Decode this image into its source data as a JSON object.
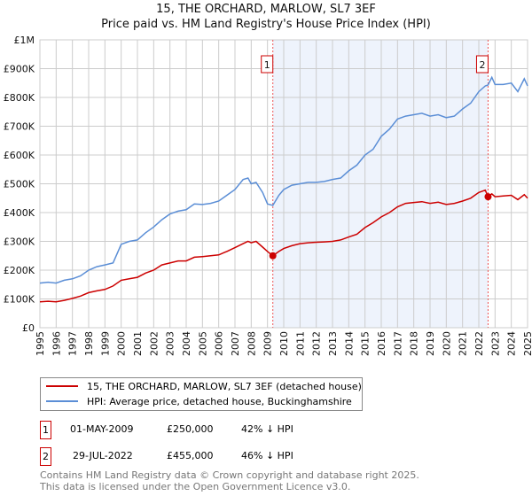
{
  "chart_data": {
    "type": "line",
    "title": "15, THE ORCHARD, MARLOW, SL7 3EF",
    "subtitle": "Price paid vs. HM Land Registry's House Price Index (HPI)",
    "xlim": [
      1995,
      2025
    ],
    "ylim": [
      0,
      1000000
    ],
    "x_ticks": [
      "1995",
      "1996",
      "1997",
      "1998",
      "1999",
      "2000",
      "2001",
      "2002",
      "2003",
      "2004",
      "2005",
      "2006",
      "2007",
      "2008",
      "2009",
      "2010",
      "2011",
      "2012",
      "2013",
      "2014",
      "2015",
      "2016",
      "2017",
      "2018",
      "2019",
      "2020",
      "2021",
      "2022",
      "2023",
      "2024",
      "2025"
    ],
    "y_ticks": [
      {
        "v": 0,
        "label": "£0"
      },
      {
        "v": 100000,
        "label": "£100K"
      },
      {
        "v": 200000,
        "label": "£200K"
      },
      {
        "v": 300000,
        "label": "£300K"
      },
      {
        "v": 400000,
        "label": "£400K"
      },
      {
        "v": 500000,
        "label": "£500K"
      },
      {
        "v": 600000,
        "label": "£600K"
      },
      {
        "v": 700000,
        "label": "£700K"
      },
      {
        "v": 800000,
        "label": "£800K"
      },
      {
        "v": 900000,
        "label": "£900K"
      },
      {
        "v": 1000000,
        "label": "£1M"
      }
    ],
    "grid": true,
    "series": [
      {
        "name": "15, THE ORCHARD, MARLOW, SL7 3EF (detached house)",
        "color": "#cc0000",
        "x": [
          1995,
          1995.5,
          1996,
          1996.5,
          1997,
          1997.5,
          1998,
          1998.5,
          1999,
          1999.5,
          2000,
          2000.5,
          2001,
          2001.5,
          2002,
          2002.5,
          2003,
          2003.5,
          2004,
          2004.5,
          2005,
          2005.5,
          2006,
          2006.5,
          2007,
          2007.5,
          2007.8,
          2008,
          2008.3,
          2008.7,
          2009,
          2009.33,
          2009.7,
          2010,
          2010.5,
          2011,
          2011.5,
          2012,
          2012.5,
          2013,
          2013.5,
          2014,
          2014.5,
          2015,
          2015.5,
          2016,
          2016.5,
          2017,
          2017.5,
          2018,
          2018.5,
          2019,
          2019.5,
          2020,
          2020.5,
          2021,
          2021.5,
          2022,
          2022.4,
          2022.57,
          2022.8,
          2023,
          2023.5,
          2024,
          2024.4,
          2024.8,
          2025
        ],
        "y": [
          90000,
          92000,
          90000,
          95000,
          102000,
          110000,
          122000,
          128000,
          133000,
          145000,
          165000,
          170000,
          175000,
          190000,
          200000,
          218000,
          225000,
          232000,
          232000,
          245000,
          247000,
          250000,
          253000,
          265000,
          278000,
          292000,
          300000,
          295000,
          300000,
          280000,
          265000,
          250000,
          265000,
          275000,
          285000,
          292000,
          295000,
          297000,
          298000,
          300000,
          305000,
          315000,
          325000,
          348000,
          365000,
          385000,
          400000,
          420000,
          432000,
          435000,
          438000,
          432000,
          436000,
          428000,
          432000,
          440000,
          450000,
          470000,
          478000,
          455000,
          465000,
          455000,
          458000,
          460000,
          445000,
          462000,
          450000
        ]
      },
      {
        "name": "HPI: Average price, detached house, Buckinghamshire",
        "color": "#5b8ed6",
        "x": [
          1995,
          1995.5,
          1996,
          1996.5,
          1997,
          1997.5,
          1998,
          1998.5,
          1999,
          1999.5,
          2000,
          2000.5,
          2001,
          2001.5,
          2002,
          2002.5,
          2003,
          2003.5,
          2004,
          2004.5,
          2005,
          2005.5,
          2006,
          2006.5,
          2007,
          2007.5,
          2007.8,
          2008,
          2008.3,
          2008.7,
          2009,
          2009.33,
          2009.7,
          2010,
          2010.5,
          2011,
          2011.5,
          2012,
          2012.5,
          2013,
          2013.5,
          2014,
          2014.5,
          2015,
          2015.5,
          2016,
          2016.5,
          2017,
          2017.5,
          2018,
          2018.5,
          2019,
          2019.5,
          2020,
          2020.5,
          2021,
          2021.5,
          2022,
          2022.4,
          2022.57,
          2022.8,
          2023,
          2023.5,
          2024,
          2024.4,
          2024.8,
          2025
        ],
        "y": [
          155000,
          158000,
          155000,
          165000,
          170000,
          180000,
          200000,
          212000,
          218000,
          225000,
          290000,
          300000,
          305000,
          330000,
          350000,
          375000,
          395000,
          405000,
          410000,
          430000,
          428000,
          432000,
          440000,
          460000,
          480000,
          515000,
          520000,
          500000,
          505000,
          470000,
          430000,
          425000,
          460000,
          480000,
          495000,
          500000,
          505000,
          505000,
          508000,
          515000,
          520000,
          545000,
          565000,
          600000,
          620000,
          665000,
          690000,
          725000,
          735000,
          740000,
          745000,
          735000,
          740000,
          730000,
          735000,
          760000,
          780000,
          820000,
          840000,
          843000,
          870000,
          845000,
          845000,
          850000,
          820000,
          865000,
          840000
        ]
      }
    ],
    "shaded_region": {
      "from": 2009.33,
      "to": 2022.57,
      "color": "#eef3fc"
    },
    "annotations": [
      {
        "label": "1",
        "x": 2009.33,
        "y": 250000
      },
      {
        "label": "2",
        "x": 2022.57,
        "y": 455000
      }
    ]
  },
  "legend": {
    "items": [
      {
        "label": "15, THE ORCHARD, MARLOW, SL7 3EF (detached house)",
        "color": "#cc0000"
      },
      {
        "label": "HPI: Average price, detached house, Buckinghamshire",
        "color": "#5b8ed6"
      }
    ]
  },
  "transactions": [
    {
      "num": "1",
      "date": "01-MAY-2009",
      "price": "£250,000",
      "diff": "42% ↓ HPI"
    },
    {
      "num": "2",
      "date": "29-JUL-2022",
      "price": "£455,000",
      "diff": "46% ↓ HPI"
    }
  ],
  "footer": {
    "line1": "Contains HM Land Registry data © Crown copyright and database right 2025.",
    "line2": "This data is licensed under the Open Government Licence v3.0."
  }
}
